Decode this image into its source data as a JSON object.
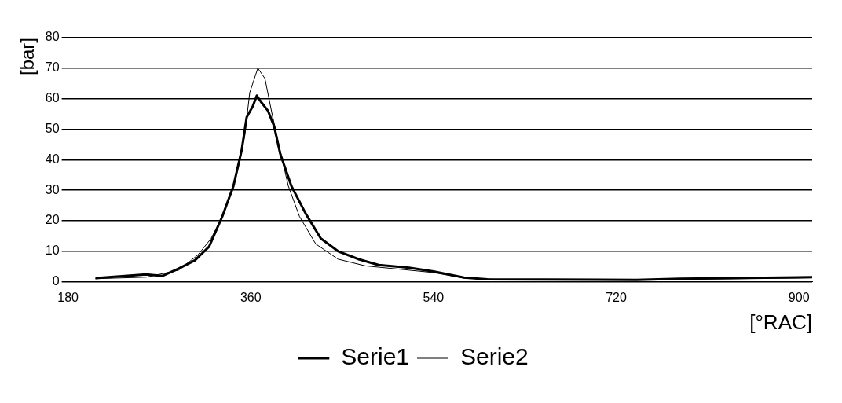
{
  "chart_data": {
    "type": "line",
    "xlabel": "[°RAC]",
    "ylabel": "[bar]",
    "xlim": [
      180,
      913
    ],
    "xticks": [
      180,
      360,
      540,
      720,
      900
    ],
    "ylim": [
      0,
      80
    ],
    "yticks": [
      0,
      10,
      20,
      30,
      40,
      50,
      60,
      70,
      80
    ],
    "grid": "y",
    "legend": "bottom",
    "marker": "none",
    "line_style": "solid",
    "series": [
      {
        "name": "Serie1",
        "color": "#000000",
        "x": [
          207,
          257,
          273,
          289,
          305,
          319,
          332,
          343,
          351,
          356,
          362,
          366,
          370,
          377,
          383,
          389,
          400,
          414,
          429,
          446,
          467,
          486,
          516,
          540,
          570,
          593,
          740,
          783,
          913
        ],
        "values": [
          1.2,
          2.4,
          1.9,
          4.3,
          7,
          11.5,
          21.4,
          31.4,
          43,
          53.9,
          57.5,
          61,
          59,
          56,
          51,
          42,
          31.4,
          22.4,
          14.2,
          10,
          7.3,
          5.5,
          4.6,
          3.4,
          1.4,
          0.8,
          0.6,
          1,
          1.5
        ]
      },
      {
        "name": "Serie2",
        "color": "#000000",
        "x": [
          207,
          257,
          289,
          308,
          321,
          332,
          343,
          354,
          359,
          367,
          374,
          381,
          389,
          397,
          408,
          424,
          446,
          473,
          516,
          540,
          570,
          600,
          740,
          913
        ],
        "values": [
          1,
          1.5,
          3.8,
          8.8,
          14.2,
          21.4,
          32,
          47.6,
          62,
          70,
          66.6,
          55,
          43,
          31.4,
          21.4,
          12.4,
          7.4,
          5.2,
          3.8,
          3,
          1.2,
          0.8,
          0.6,
          1.3
        ]
      }
    ]
  }
}
